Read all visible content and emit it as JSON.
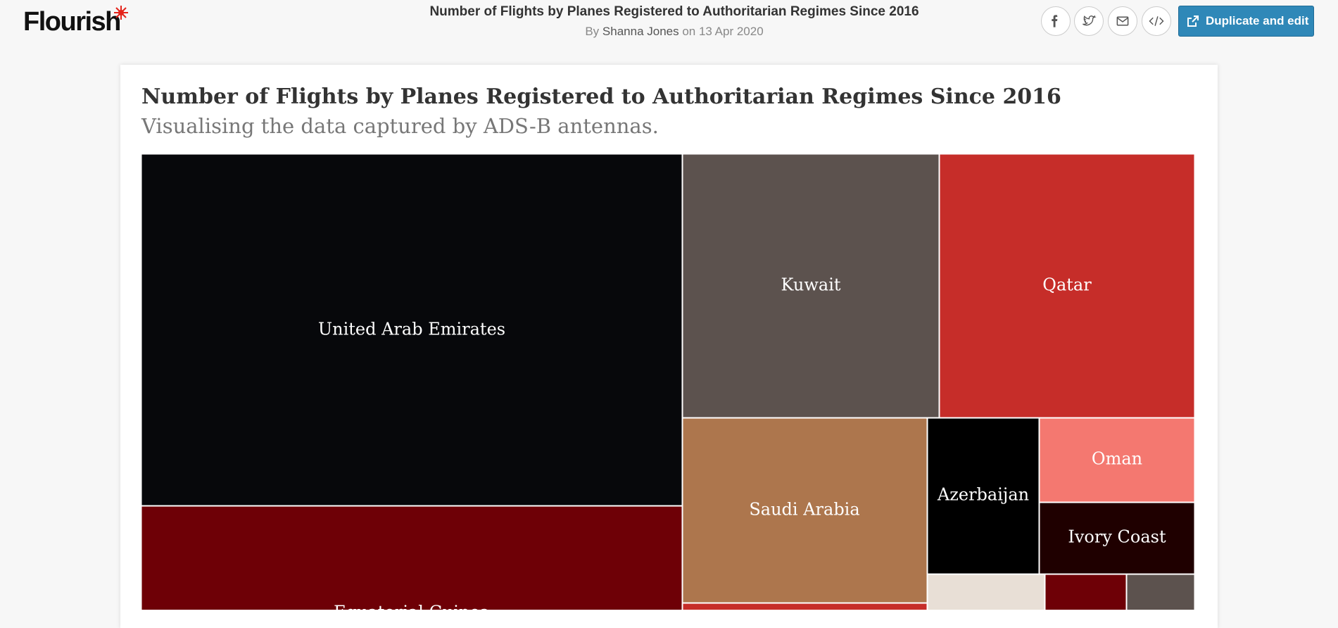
{
  "header": {
    "logo": "Flourish",
    "title": "Number of Flights by Planes Registered to Authoritarian Regimes Since 2016",
    "byline": {
      "by": "By",
      "author": "Shanna Jones",
      "on": "on 13 Apr 2020"
    },
    "button": "Duplicate and edit"
  },
  "chart": {
    "title": "Number of Flights by Planes Registered to Authoritarian Regimes Since 2016",
    "subtitle": "Visualising the data captured by ADS-B antennas.",
    "nodes": [
      {
        "label": "United Arab Emirates",
        "color": "#07080b"
      },
      {
        "label": "Equatorial Guinea",
        "color": "#6e0006"
      },
      {
        "label": "Kuwait",
        "color": "#5c524e"
      },
      {
        "label": "Qatar",
        "color": "#c62d29"
      },
      {
        "label": "Saudi Arabia",
        "color": "#ad764d"
      },
      {
        "color": "#c62d29"
      },
      {
        "label": "Azerbaijan",
        "color": "#000000"
      },
      {
        "label": "Oman",
        "color": "#f47870"
      },
      {
        "label": "Ivory Coast",
        "color": "#1f0000"
      },
      {
        "color": "#e8dfd6"
      },
      {
        "color": "#6e0006"
      },
      {
        "color": "#5c524e"
      }
    ]
  }
}
